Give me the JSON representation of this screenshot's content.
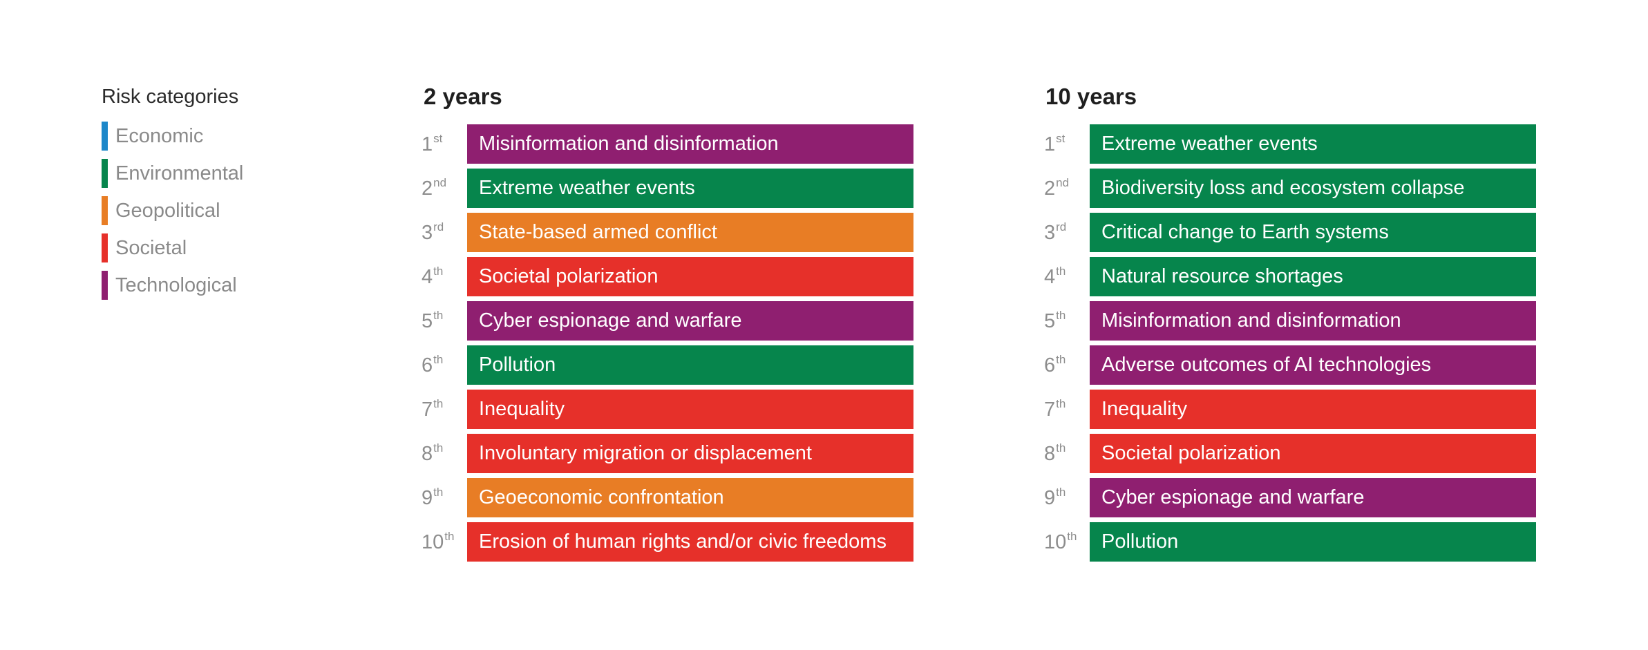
{
  "colors": {
    "Economic": "#1c87c9",
    "Environmental": "#06854c",
    "Geopolitical": "#e87d25",
    "Societal": "#e6302a",
    "Technological": "#8f1f70"
  },
  "legend": {
    "title": "Risk categories",
    "items": [
      {
        "label": "Economic"
      },
      {
        "label": "Environmental"
      },
      {
        "label": "Geopolitical"
      },
      {
        "label": "Societal"
      },
      {
        "label": "Technological"
      }
    ]
  },
  "panels": [
    {
      "title": "2 years",
      "rows": [
        {
          "rank": "1",
          "suffix": "st",
          "label": "Misinformation and disinformation",
          "category": "Technological"
        },
        {
          "rank": "2",
          "suffix": "nd",
          "label": "Extreme weather events",
          "category": "Environmental"
        },
        {
          "rank": "3",
          "suffix": "rd",
          "label": "State-based armed conflict",
          "category": "Geopolitical"
        },
        {
          "rank": "4",
          "suffix": "th",
          "label": "Societal polarization",
          "category": "Societal"
        },
        {
          "rank": "5",
          "suffix": "th",
          "label": "Cyber espionage and warfare",
          "category": "Technological"
        },
        {
          "rank": "6",
          "suffix": "th",
          "label": "Pollution",
          "category": "Environmental"
        },
        {
          "rank": "7",
          "suffix": "th",
          "label": "Inequality",
          "category": "Societal"
        },
        {
          "rank": "8",
          "suffix": "th",
          "label": "Involuntary migration or displacement",
          "category": "Societal"
        },
        {
          "rank": "9",
          "suffix": "th",
          "label": "Geoeconomic confrontation",
          "category": "Geopolitical"
        },
        {
          "rank": "10",
          "suffix": "th",
          "label": "Erosion of human rights and/or civic freedoms",
          "category": "Societal"
        }
      ]
    },
    {
      "title": "10 years",
      "rows": [
        {
          "rank": "1",
          "suffix": "st",
          "label": "Extreme weather events",
          "category": "Environmental"
        },
        {
          "rank": "2",
          "suffix": "nd",
          "label": "Biodiversity loss and ecosystem collapse",
          "category": "Environmental"
        },
        {
          "rank": "3",
          "suffix": "rd",
          "label": "Critical change to Earth systems",
          "category": "Environmental"
        },
        {
          "rank": "4",
          "suffix": "th",
          "label": "Natural resource shortages",
          "category": "Environmental"
        },
        {
          "rank": "5",
          "suffix": "th",
          "label": "Misinformation and disinformation",
          "category": "Technological"
        },
        {
          "rank": "6",
          "suffix": "th",
          "label": "Adverse outcomes of AI technologies",
          "category": "Technological"
        },
        {
          "rank": "7",
          "suffix": "th",
          "label": "Inequality",
          "category": "Societal"
        },
        {
          "rank": "8",
          "suffix": "th",
          "label": "Societal polarization",
          "category": "Societal"
        },
        {
          "rank": "9",
          "suffix": "th",
          "label": "Cyber espionage and warfare",
          "category": "Technological"
        },
        {
          "rank": "10",
          "suffix": "th",
          "label": "Pollution",
          "category": "Environmental"
        }
      ]
    }
  ]
}
